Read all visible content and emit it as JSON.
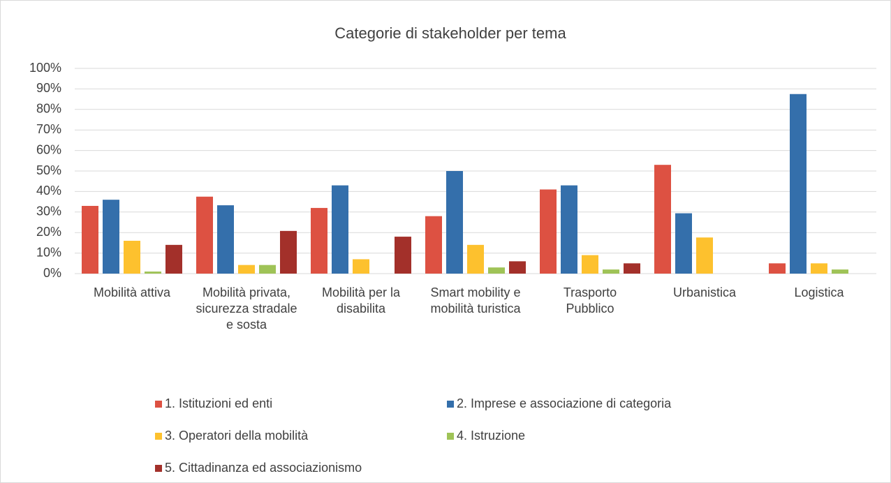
{
  "chart_data": {
    "type": "bar",
    "title": "Categorie di stakeholder per tema",
    "categories": [
      "Mobilità attiva",
      "Mobilità privata, sicurezza stradale e sosta",
      "Mobilità per la disabilita",
      "Smart mobility e mobilità turistica",
      "Trasporto Pubblico",
      "Urbanistica",
      "Logistica"
    ],
    "series": [
      {
        "name": "1. Istituzioni ed enti",
        "color": "#dd5142",
        "values": [
          33,
          37.5,
          32,
          28,
          41,
          53,
          5
        ]
      },
      {
        "name": "2. Imprese e associazione di categoria",
        "color": "#346fab",
        "values": [
          36,
          33.3,
          43,
          50,
          43,
          29.4,
          87.5
        ]
      },
      {
        "name": "3. Operatori della mobilità",
        "color": "#fdc12e",
        "values": [
          16,
          4.2,
          7,
          14,
          9,
          17.6,
          5
        ]
      },
      {
        "name": "4. Istruzione",
        "color": "#9fc357",
        "values": [
          1,
          4.2,
          0,
          3,
          2,
          0,
          2
        ]
      },
      {
        "name": "5. Cittadinanza ed associazionismo",
        "color": "#a3302a",
        "values": [
          14,
          20.8,
          18,
          6,
          5,
          0,
          0
        ]
      }
    ],
    "ylim": [
      0,
      100
    ],
    "yticks": [
      {
        "value": 0,
        "label": "0%"
      },
      {
        "value": 10,
        "label": "10%"
      },
      {
        "value": 20,
        "label": "20%"
      },
      {
        "value": 30,
        "label": "30%"
      },
      {
        "value": 40,
        "label": "40%"
      },
      {
        "value": 50,
        "label": "50%"
      },
      {
        "value": 60,
        "label": "60%"
      },
      {
        "value": 70,
        "label": "70%"
      },
      {
        "value": 80,
        "label": "80%"
      },
      {
        "value": 90,
        "label": "90%"
      },
      {
        "value": 100,
        "label": "100%"
      }
    ],
    "grid": true
  }
}
